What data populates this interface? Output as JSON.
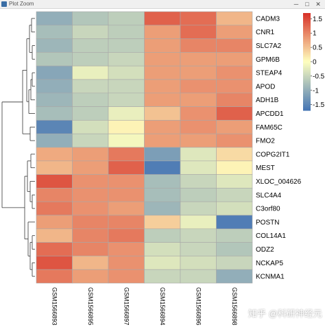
{
  "window": {
    "title": "Plot Zoom"
  },
  "window_controls": {
    "minimize": "─",
    "maximize": "□",
    "close": "✕"
  },
  "watermark": "知乎 @科研神经元",
  "chart_data": {
    "type": "heatmap",
    "title": "",
    "xlabel": "",
    "ylabel": "",
    "columns": [
      "GSM1566893",
      "GSM1566895",
      "GSM1566897",
      "GSM1566894",
      "GSM1566896",
      "GSM1566898"
    ],
    "rows": [
      "CADM3",
      "CNR1",
      "SLC7A2",
      "GPM6B",
      "STEAP4",
      "APOD",
      "ADH1B",
      "APCDD1",
      "FAM65C",
      "FMO2",
      "COPG2IT1",
      "MEST",
      "XLOC_004626",
      "SLC4A4",
      "C3orf80",
      "POSTN",
      "COL14A1",
      "ODZ2",
      "NCKAP5",
      "KCNMA1"
    ],
    "values": [
      [
        -1.0,
        -0.7,
        -0.6,
        1.3,
        1.2,
        0.6
      ],
      [
        -0.8,
        -0.5,
        -0.6,
        0.8,
        1.2,
        0.8
      ],
      [
        -0.9,
        -0.6,
        -0.6,
        0.8,
        1.0,
        1.0
      ],
      [
        -0.7,
        -0.6,
        -0.5,
        0.8,
        0.8,
        0.8
      ],
      [
        -1.1,
        -0.2,
        -0.4,
        0.8,
        0.8,
        0.9
      ],
      [
        -1.0,
        -0.5,
        -0.5,
        0.8,
        0.9,
        0.9
      ],
      [
        -0.9,
        -0.6,
        -0.5,
        0.8,
        0.8,
        1.0
      ],
      [
        -0.8,
        -0.6,
        -0.2,
        0.5,
        0.9,
        1.3
      ],
      [
        -1.5,
        -0.4,
        0.1,
        0.8,
        0.9,
        0.8
      ],
      [
        -1.0,
        -0.5,
        -0.1,
        0.8,
        0.8,
        0.9
      ],
      [
        0.7,
        0.8,
        1.1,
        -1.2,
        -0.3,
        0.3
      ],
      [
        0.6,
        0.8,
        1.3,
        -1.6,
        -0.3,
        0.1
      ],
      [
        1.4,
        0.9,
        0.9,
        -0.8,
        -0.5,
        -0.3
      ],
      [
        1.0,
        0.9,
        0.9,
        -0.8,
        -0.6,
        -0.5
      ],
      [
        1.1,
        0.9,
        0.8,
        -0.9,
        -0.5,
        -0.4
      ],
      [
        0.8,
        1.0,
        1.0,
        0.4,
        -0.2,
        -1.6
      ],
      [
        0.6,
        1.0,
        1.1,
        -0.6,
        -0.5,
        -0.6
      ],
      [
        1.2,
        1.0,
        0.9,
        -0.4,
        -0.5,
        -0.7
      ],
      [
        1.4,
        0.6,
        0.9,
        -0.3,
        -0.4,
        -0.5
      ],
      [
        1.1,
        0.8,
        0.9,
        -0.5,
        -0.5,
        -1.0
      ]
    ],
    "color_scale": {
      "min": -1.7,
      "max": 1.7,
      "low": "#4575b4",
      "mid": "#ffffbf",
      "high": "#d73027"
    },
    "legend": {
      "ticks": [
        1.5,
        1,
        0.5,
        0,
        -0.5,
        -1,
        -1.5
      ],
      "placement": "right"
    },
    "row_dendrogram": true,
    "col_dendrogram": false,
    "grid": false
  }
}
